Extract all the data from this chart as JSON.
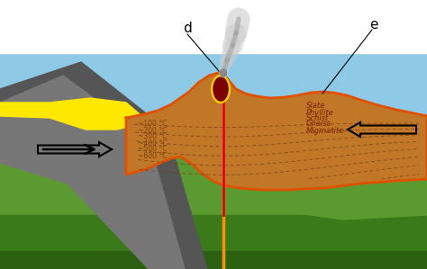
{
  "fig_width": 4.74,
  "fig_height": 2.99,
  "dpi": 100,
  "bg_white": "#ffffff",
  "sky_color": "#8ECAE6",
  "green_upper_color": "#5a9a30",
  "green_lower_color": "#3a7a18",
  "green_deep_color": "#2a6010",
  "gray_dark_color": "#555555",
  "gray_mid_color": "#777777",
  "yellow_color": "#FFE800",
  "brown_color": "#C07828",
  "orange_border_color": "#E05000",
  "dark_red_color": "#7B0000",
  "red_line_color": "#DD0000",
  "orange_line_color": "#FF9000",
  "dashed_color": "#7a4010",
  "label_color": "#7B2000",
  "smoke_color": "#cccccc",
  "temp_labels": [
    "~100 °C",
    "~200 °C",
    "~300 °C",
    "~400 °C",
    "~500 °C",
    "~600 °C"
  ],
  "rock_labels": [
    "Slate",
    "Phyllite",
    "Schist",
    "Gneiss",
    "Migmatite"
  ],
  "annotation_d": "d",
  "annotation_e": "e"
}
